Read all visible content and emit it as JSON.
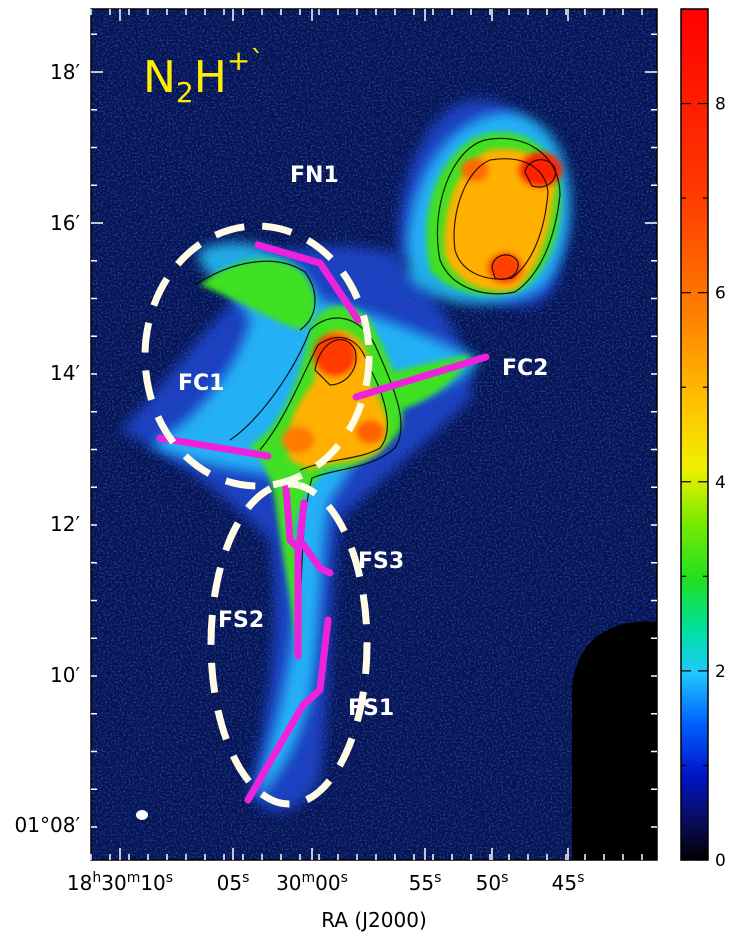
{
  "figure": {
    "species": {
      "main": "N",
      "sub": "2",
      "rest": "H",
      "sup": "+`"
    },
    "xlabel": "RA (J2000)",
    "x_ticks": [
      {
        "text": "18h30m10s",
        "parts": [
          [
            "18",
            ""
          ],
          [
            "h",
            "sup"
          ],
          [
            "30",
            ""
          ],
          [
            "m",
            "sup"
          ],
          [
            "10",
            ""
          ],
          [
            "s",
            "sup"
          ]
        ]
      },
      {
        "text": "05s",
        "parts": [
          [
            "05",
            ""
          ],
          [
            "s",
            "sup"
          ]
        ]
      },
      {
        "text": "30m00s",
        "parts": [
          [
            "30",
            ""
          ],
          [
            "m",
            "sup"
          ],
          [
            "00",
            ""
          ],
          [
            "s",
            "sup"
          ]
        ]
      },
      {
        "text": "55s",
        "parts": [
          [
            "55",
            ""
          ],
          [
            "s",
            "sup"
          ]
        ]
      },
      {
        "text": "50s",
        "parts": [
          [
            "50",
            ""
          ],
          [
            "s",
            "sup"
          ]
        ]
      },
      {
        "text": "45s",
        "parts": [
          [
            "45",
            ""
          ],
          [
            "s",
            "sup"
          ]
        ]
      }
    ],
    "y_ticks": [
      "18′",
      "16′",
      "14′",
      "12′",
      "10′",
      "01°08′"
    ],
    "colorbar": {
      "ticks": [
        "0",
        "2",
        "4",
        "6",
        "8"
      ],
      "min": 0,
      "max": 9
    },
    "regions": [
      "FN1",
      "FC1",
      "FC2",
      "FS3",
      "FS2",
      "FS1"
    ],
    "colors": {
      "filament": "#ee22dd",
      "ellipse": "#fffbe6",
      "species_text": "#ffee00",
      "background": "#06134f"
    }
  }
}
